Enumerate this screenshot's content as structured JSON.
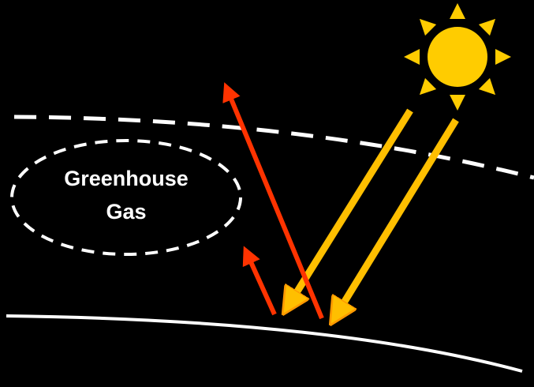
{
  "label": {
    "lines": [
      "Greenhouse",
      "Gas"
    ]
  }
}
